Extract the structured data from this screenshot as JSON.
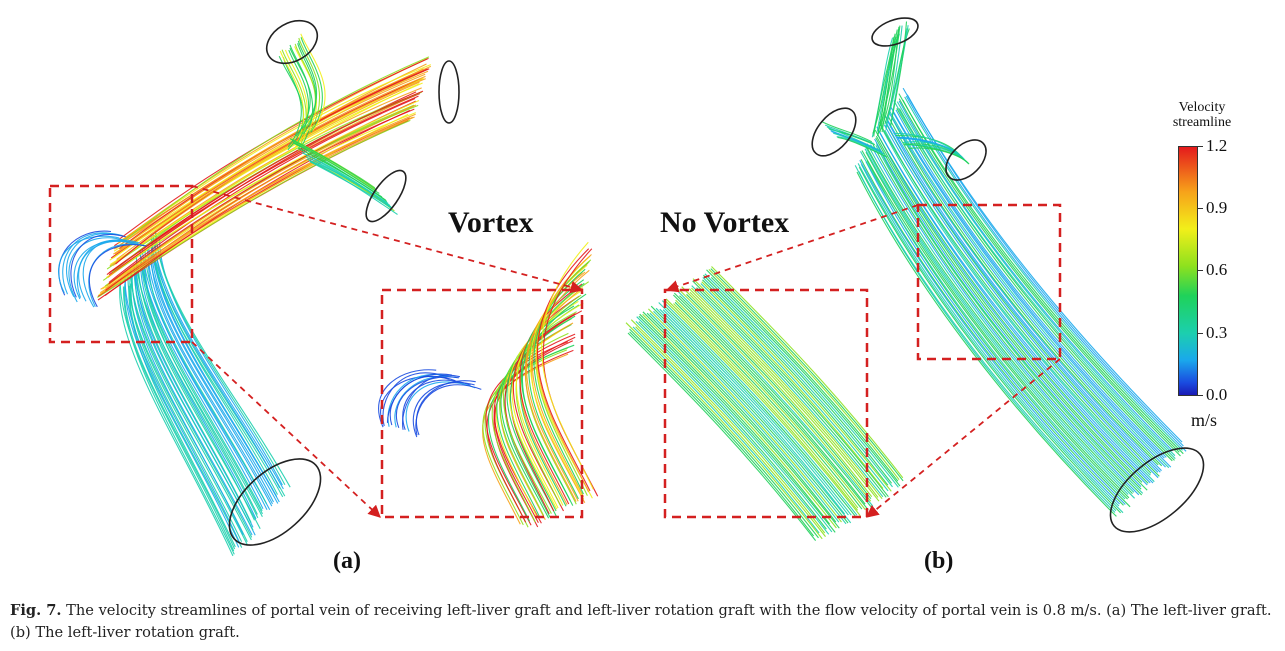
{
  "labels": {
    "vortex": "Vortex",
    "no_vortex": "No Vortex",
    "panel_a": "(a)",
    "panel_b": "(b)"
  },
  "colorbar": {
    "title_line1": "Velocity",
    "title_line2": "streamline",
    "ticks": [
      "1.2",
      "0.9",
      "0.6",
      "0.3",
      "0.0"
    ],
    "unit": "m/s",
    "min": 0.0,
    "max": 1.2,
    "colors": [
      "#e41a1c",
      "#f7a21a",
      "#f2ef1a",
      "#8ee11e",
      "#1fd25a",
      "#1ccfae",
      "#1aa8ec",
      "#1a4be0",
      "#1a1ab4"
    ]
  },
  "caption": {
    "label": "Fig. 7.",
    "text": " The velocity streamlines of portal vein of receiving left-liver graft and left-liver rotation graft with the flow velocity of portal vein is 0.8 m/s. (a) The left-liver graft. (b) The left-liver rotation graft."
  },
  "style": {
    "box_color": "#d42020",
    "outline_color": "#222222"
  }
}
